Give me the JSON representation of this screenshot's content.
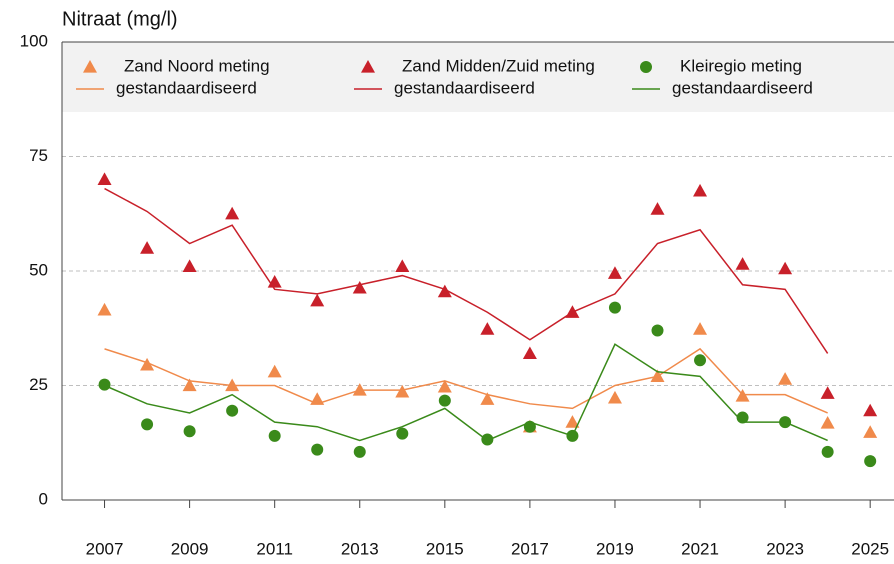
{
  "chart_data": {
    "type": "line",
    "ylabel": "Nitraat (mg/l)",
    "x": [
      2007,
      2008,
      2009,
      2010,
      2011,
      2012,
      2013,
      2014,
      2015,
      2016,
      2017,
      2018,
      2019,
      2020,
      2021,
      2022,
      2023,
      2024,
      2025
    ],
    "xlim": [
      2006,
      2025.56
    ],
    "xticks": [
      2007,
      2009,
      2011,
      2013,
      2015,
      2017,
      2019,
      2021,
      2023,
      2025
    ],
    "ylim": [
      0,
      100
    ],
    "yticks": [
      0,
      25,
      50,
      75,
      100
    ],
    "grid": true,
    "series": [
      {
        "name": "Zand Noord meting",
        "color": "#f08a4b",
        "style": "triangle",
        "values": [
          41.5,
          29.5,
          25,
          25,
          28,
          22,
          24,
          23.6,
          24.7,
          22,
          16,
          17,
          22.3,
          27,
          37.3,
          22.7,
          26.4,
          16.8,
          14.8
        ]
      },
      {
        "name": "gestandaardiseerd",
        "color": "#f08a4b",
        "style": "line",
        "values": [
          33,
          30,
          26,
          25,
          25,
          21,
          24,
          24,
          26,
          23,
          21,
          20,
          25,
          27,
          33,
          23,
          23,
          19,
          null
        ]
      },
      {
        "name": "Zand Midden/Zuid meting",
        "color": "#c8202a",
        "style": "triangle",
        "values": [
          70,
          55,
          51,
          62.5,
          47.6,
          43.5,
          46.3,
          51,
          45.5,
          37.3,
          32,
          41,
          49.5,
          63.5,
          67.5,
          51.5,
          50.5,
          23.3,
          19.5
        ]
      },
      {
        "name": "gestandaardiseerd",
        "color": "#c8202a",
        "style": "line",
        "values": [
          68,
          63,
          56,
          60,
          46,
          45,
          47,
          49,
          46,
          41,
          35,
          41,
          45,
          56,
          59,
          47,
          46,
          32,
          null
        ]
      },
      {
        "name": "Kleiregio meting",
        "color": "#3a8a1a",
        "style": "circle",
        "values": [
          25.2,
          16.5,
          15,
          19.5,
          14,
          11,
          10.5,
          14.5,
          21.7,
          13.2,
          16,
          14,
          42,
          37,
          30.5,
          18,
          17,
          10.5,
          8.5
        ]
      },
      {
        "name": "gestandaardiseerd",
        "color": "#3a8a1a",
        "style": "line",
        "values": [
          25,
          21,
          19,
          23,
          17,
          16,
          13,
          16,
          20,
          13,
          17,
          14,
          34,
          28,
          27,
          17,
          17,
          13,
          null
        ]
      }
    ]
  }
}
